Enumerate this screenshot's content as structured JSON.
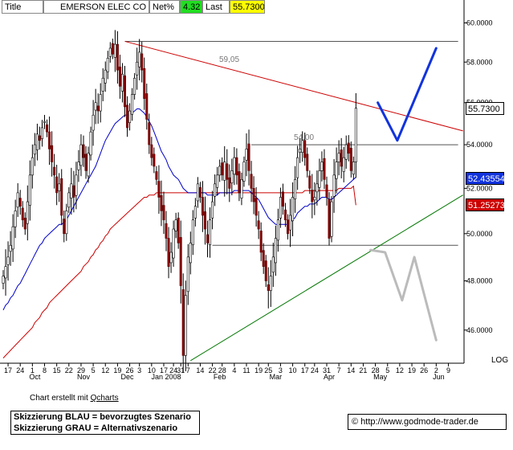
{
  "header": {
    "title_label": "Title",
    "security_name": "EMERSON ELEC CO",
    "netpct_label": "Net%",
    "netpct_value": "4.32",
    "last_label": "Last",
    "last_value": "55.7300"
  },
  "colors": {
    "netpct_bg": "#22dd22",
    "last_bg": "#ffff00",
    "ma_blue": "#0000cc",
    "ma_red": "#cc0000",
    "scenario_blue": "#1133dd",
    "scenario_grey": "#bbbbbb",
    "support_green": "#007700",
    "resistance_red": "#cc0000"
  },
  "chart_data": {
    "type": "candlestick",
    "title": "EMERSON ELEC CO",
    "y_ticks": [
      46,
      48,
      50,
      52,
      54,
      56,
      58,
      60
    ],
    "y_tick_labels": [
      "46.0000",
      "48.0000",
      "50.0000",
      "52.0000",
      "54.0000",
      "56.0000",
      "58.0000",
      "60.0000"
    ],
    "ylim": [
      44.7,
      61.2
    ],
    "x_ticks": [
      {
        "label": "17",
        "slot": 2
      },
      {
        "label": "24",
        "slot": 7
      },
      {
        "label": "1",
        "slot": 12
      },
      {
        "label": "8",
        "slot": 17
      },
      {
        "label": "15",
        "slot": 22
      },
      {
        "label": "22",
        "slot": 27
      },
      {
        "label": "29",
        "slot": 32
      },
      {
        "label": "5",
        "slot": 37
      },
      {
        "label": "12",
        "slot": 42
      },
      {
        "label": "19",
        "slot": 47
      },
      {
        "label": "26",
        "slot": 52
      },
      {
        "label": "3",
        "slot": 56
      },
      {
        "label": "10",
        "slot": 61
      },
      {
        "label": "17",
        "slot": 66
      },
      {
        "label": "24",
        "slot": 70
      },
      {
        "label": "31",
        "slot": 73
      },
      {
        "label": "7",
        "slot": 76
      },
      {
        "label": "14",
        "slot": 81
      },
      {
        "label": "22",
        "slot": 86
      },
      {
        "label": "28",
        "slot": 90
      },
      {
        "label": "4",
        "slot": 95
      },
      {
        "label": "11",
        "slot": 100
      },
      {
        "label": "19",
        "slot": 105
      },
      {
        "label": "25",
        "slot": 109
      },
      {
        "label": "3",
        "slot": 114
      },
      {
        "label": "10",
        "slot": 119
      },
      {
        "label": "17",
        "slot": 124
      },
      {
        "label": "24",
        "slot": 128
      },
      {
        "label": "31",
        "slot": 133
      },
      {
        "label": "7",
        "slot": 138
      },
      {
        "label": "14",
        "slot": 143
      },
      {
        "label": "21",
        "slot": 148
      },
      {
        "label": "28",
        "slot": 153
      },
      {
        "label": "5",
        "slot": 158
      },
      {
        "label": "12",
        "slot": 163
      },
      {
        "label": "19",
        "slot": 168
      },
      {
        "label": "26",
        "slot": 173
      },
      {
        "label": "2",
        "slot": 178
      },
      {
        "label": "9",
        "slot": 183
      }
    ],
    "month_labels": [
      {
        "label": "Oct",
        "slot": 13
      },
      {
        "label": "Nov",
        "slot": 33
      },
      {
        "label": "Dec",
        "slot": 51
      },
      {
        "label": "Jan 2008",
        "slot": 67
      },
      {
        "label": "Feb",
        "slot": 89
      },
      {
        "label": "Mar",
        "slot": 112
      },
      {
        "label": "Apr",
        "slot": 134
      },
      {
        "label": "May",
        "slot": 155
      },
      {
        "label": "Jun",
        "slot": 179
      }
    ],
    "closes": [
      48.2,
      48.6,
      49.0,
      49.5,
      50.3,
      51.0,
      51.8,
      51.2,
      50.6,
      50.2,
      51.4,
      52.6,
      53.4,
      54.0,
      54.5,
      54.2,
      54.8,
      55.1,
      54.6,
      53.8,
      53.2,
      52.6,
      51.8,
      52.2,
      50.8,
      50.0,
      51.0,
      51.8,
      52.2,
      51.6,
      52.6,
      53.2,
      54.0,
      53.4,
      52.8,
      53.6,
      54.6,
      55.4,
      56.0,
      55.6,
      56.4,
      57.2,
      57.6,
      58.2,
      58.7,
      58.4,
      58.9,
      57.6,
      56.8,
      57.4,
      55.8,
      54.8,
      55.6,
      56.4,
      57.2,
      58.0,
      58.5,
      57.6,
      56.2,
      55.2,
      54.0,
      53.4,
      53.0,
      52.4,
      51.6,
      51.0,
      50.6,
      49.8,
      48.6,
      49.2,
      50.2,
      50.6,
      49.6,
      47.8,
      45.0,
      47.4,
      49.0,
      49.6,
      50.6,
      51.2,
      52.2,
      51.6,
      50.8,
      50.2,
      49.6,
      50.6,
      51.4,
      52.2,
      52.6,
      53.0,
      52.6,
      53.2,
      52.4,
      52.0,
      52.8,
      53.4,
      52.6,
      51.8,
      52.4,
      53.2,
      53.8,
      52.8,
      52.0,
      51.4,
      50.8,
      50.2,
      49.2,
      48.6,
      48.0,
      47.6,
      48.2,
      49.0,
      49.8,
      50.6,
      51.6,
      51.2,
      50.6,
      50.0,
      50.8,
      51.6,
      52.4,
      53.4,
      53.8,
      54.2,
      53.4,
      52.8,
      52.0,
      51.4,
      51.6,
      52.2,
      52.8,
      53.2,
      52.4,
      51.6,
      49.8,
      51.4,
      52.6,
      53.2,
      53.6,
      53.0,
      53.4,
      54.0,
      53.6,
      52.8,
      53.2,
      55.73
    ],
    "ma_blue": [
      46.8,
      47.0,
      47.1,
      47.3,
      47.4,
      47.6,
      47.8,
      47.9,
      48.1,
      48.3,
      48.5,
      48.7,
      48.9,
      49.1,
      49.3,
      49.5,
      49.6,
      49.8,
      49.9,
      50.0,
      50.1,
      50.2,
      50.3,
      50.4,
      50.4,
      50.5,
      50.6,
      50.8,
      51.0,
      51.2,
      51.4,
      51.6,
      51.8,
      52.0,
      52.2,
      52.4,
      52.6,
      52.8,
      53.0,
      53.3,
      53.6,
      53.9,
      54.2,
      54.4,
      54.6,
      54.8,
      55.0,
      55.1,
      55.2,
      55.3,
      55.4,
      55.4,
      55.4,
      55.5,
      55.6,
      55.7,
      55.7,
      55.6,
      55.5,
      55.3,
      55.1,
      54.9,
      54.6,
      54.3,
      54.0,
      53.7,
      53.5,
      53.3,
      53.0,
      52.8,
      52.6,
      52.5,
      52.4,
      52.2,
      52.0,
      51.9,
      51.8,
      51.8,
      51.8,
      51.8,
      51.8,
      51.8,
      51.8,
      51.8,
      51.7,
      51.7,
      51.7,
      51.7,
      51.7,
      51.8,
      51.8,
      51.8,
      51.8,
      51.8,
      51.8,
      51.9,
      51.9,
      51.9,
      51.9,
      51.9,
      51.9,
      51.9,
      51.8,
      51.7,
      51.6,
      51.5,
      51.3,
      51.1,
      50.9,
      50.7,
      50.6,
      50.5,
      50.4,
      50.4,
      50.4,
      50.4,
      50.4,
      50.4,
      50.5,
      50.6,
      50.7,
      50.9,
      51.0,
      51.1,
      51.2,
      51.2,
      51.3,
      51.3,
      51.3,
      51.4,
      51.5,
      51.6,
      51.6,
      51.6,
      51.5,
      51.5,
      51.6,
      51.7,
      51.8,
      51.9,
      52.0,
      52.1,
      52.2,
      52.3,
      52.4,
      52.5
    ],
    "ma_red": [
      44.9,
      45.0,
      45.1,
      45.2,
      45.3,
      45.4,
      45.5,
      45.6,
      45.7,
      45.8,
      45.9,
      46.0,
      46.1,
      46.3,
      46.4,
      46.5,
      46.7,
      46.8,
      46.9,
      47.1,
      47.2,
      47.3,
      47.4,
      47.5,
      47.6,
      47.7,
      47.8,
      47.9,
      48.0,
      48.1,
      48.2,
      48.3,
      48.4,
      48.6,
      48.7,
      48.8,
      49.0,
      49.1,
      49.3,
      49.4,
      49.6,
      49.7,
      49.9,
      50.0,
      50.2,
      50.3,
      50.4,
      50.5,
      50.6,
      50.7,
      50.8,
      50.9,
      51.0,
      51.1,
      51.2,
      51.3,
      51.4,
      51.5,
      51.6,
      51.6,
      51.7,
      51.7,
      51.7,
      51.8,
      51.8,
      51.8,
      51.8,
      51.8,
      51.8,
      51.8,
      51.8,
      51.8,
      51.8,
      51.8,
      51.8,
      51.8,
      51.8,
      51.8,
      51.8,
      51.8,
      51.8,
      51.8,
      51.8,
      51.8,
      51.8,
      51.8,
      51.8,
      51.8,
      51.8,
      51.8,
      51.8,
      51.8,
      51.8,
      51.8,
      51.8,
      51.8,
      51.8,
      51.8,
      51.8,
      51.8,
      51.8,
      51.8,
      51.8,
      51.8,
      51.8,
      51.8,
      51.8,
      51.8,
      51.8,
      51.8,
      51.8,
      51.8,
      51.8,
      51.8,
      51.8,
      51.8,
      51.8,
      51.8,
      51.8,
      51.8,
      51.8,
      51.8,
      51.8,
      51.8,
      51.9,
      51.9,
      51.9,
      51.9,
      51.9,
      51.9,
      51.9,
      51.9,
      51.9,
      51.9,
      51.9,
      51.9,
      51.9,
      51.9,
      52.0,
      52.0,
      52.0,
      52.0,
      52.0,
      52.0,
      52.1,
      51.25
    ],
    "hlines": [
      {
        "label": "59,05",
        "value": 59.05,
        "from_slot": 50,
        "to_slot": 187,
        "color": "#555555"
      },
      {
        "label": "54,00",
        "value": 54.0,
        "from_slot": 102,
        "to_slot": 187,
        "color": "#555555"
      },
      {
        "value": 49.5,
        "from_slot": 86,
        "to_slot": 187,
        "color": "#555555"
      }
    ],
    "trendlines": [
      {
        "name": "resistance",
        "from": {
          "slot": 50,
          "value": 59.05
        },
        "to": {
          "slot": 189,
          "value": 54.65
        },
        "color": "#cc0000"
      },
      {
        "name": "support",
        "from": {
          "slot": 77,
          "value": 44.8
        },
        "to": {
          "slot": 189,
          "value": 51.7
        },
        "color": "#007700"
      }
    ],
    "scenario_blue": [
      {
        "slot": 154,
        "value": 56.0
      },
      {
        "slot": 162,
        "value": 54.2
      },
      {
        "slot": 178,
        "value": 58.7
      }
    ],
    "scenario_grey": [
      {
        "slot": 151,
        "value": 49.3
      },
      {
        "slot": 157,
        "value": 49.2
      },
      {
        "slot": 164,
        "value": 47.2
      },
      {
        "slot": 169,
        "value": 49.0
      },
      {
        "slot": 178,
        "value": 45.6
      }
    ],
    "price_tags": [
      {
        "value": "55.7300",
        "price": 55.73,
        "bg": "#ffffff",
        "fg": "#000000"
      },
      {
        "value": "52.43554",
        "price": 52.44,
        "bg": "#1133dd",
        "fg": "#ffffff"
      },
      {
        "value": "51.25273",
        "price": 51.25,
        "bg": "#cc0000",
        "fg": "#ffffff"
      }
    ],
    "scale_label": "LOG"
  },
  "footer": {
    "credit_prefix": "Chart erstellt mit",
    "credit_link": "Qcharts",
    "legend_blue": "Skizzierung BLAU = bevorzugtes Szenario",
    "legend_grey": "Skizzierung GRAU = Alternativszenario",
    "copyright_symbol": "©",
    "website": "http://www.godmode-trader.de"
  }
}
